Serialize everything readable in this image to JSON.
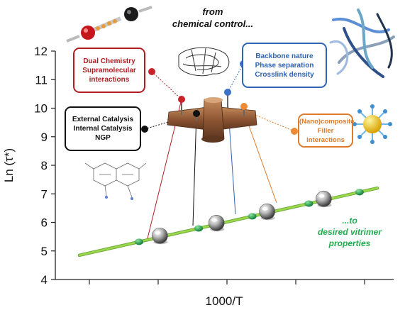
{
  "chart_data": {
    "type": "line",
    "xlabel": "1000/T",
    "ylabel": "Ln (τ*)",
    "ylim": [
      4,
      12
    ],
    "yticks": [
      4,
      5,
      6,
      7,
      8,
      9,
      10,
      11,
      12
    ],
    "x_tick_marks": 5,
    "x_has_tick_labels": false,
    "grid": false,
    "series": [
      {
        "x": [
          0.0,
          1.0
        ],
        "values": [
          4.85,
          7.2
        ],
        "color": "#9bd84a"
      }
    ],
    "green_points_x": [
      0.2,
      0.4,
      0.58,
      0.77,
      0.94
    ],
    "spheres_x": [
      0.27,
      0.46,
      0.63,
      0.82
    ],
    "line_colors": {
      "red": "#b01e23",
      "black": "#111111",
      "blue": "#2f63b3",
      "orange": "#e07b2a",
      "green": "#21ad4f"
    }
  },
  "annotations": {
    "top_caption": {
      "line1": "from",
      "line2": "chemical control..."
    },
    "bottom_caption": {
      "line1": "...to",
      "line2": "desired vitrimer",
      "line3": "properties"
    },
    "box_red": {
      "lines": [
        "Dual Chemistry",
        "Supramolecular",
        "interactions"
      ]
    },
    "box_black": {
      "lines": [
        "External Catalysis",
        "Internal Catalysis",
        "NGP"
      ]
    },
    "box_blue": {
      "lines": [
        "Backbone nature",
        "Phase separation",
        "Crosslink density"
      ]
    },
    "box_orange": {
      "lines": [
        "(Nano)composite",
        "Filler interactions"
      ]
    }
  },
  "icons": {
    "molecule": "molecule-chain-icon",
    "polymer": "polymer-chains-icon",
    "network": "network-sketch-icon",
    "nanoparticle": "nanoparticle-icon",
    "mixing_board": "mixing-console-icon"
  }
}
